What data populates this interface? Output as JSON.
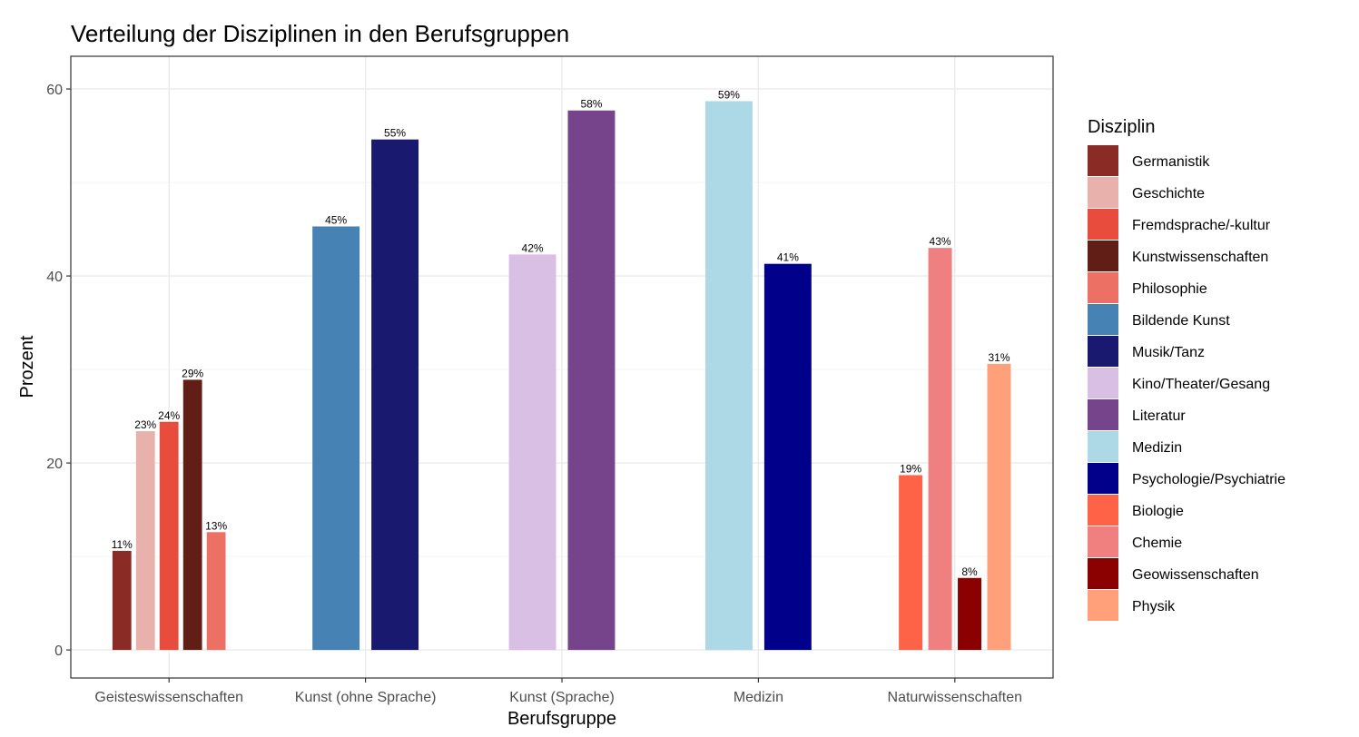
{
  "chart_data": {
    "type": "bar",
    "title": "Verteilung der Disziplinen in den Berufsgruppen",
    "xlabel": "Berufsgruppe",
    "ylabel": "Prozent",
    "ylim": [
      -3,
      63.5
    ],
    "yticks": [
      0,
      20,
      40,
      60
    ],
    "grid": true,
    "legend_title": "Disziplin",
    "legend_position": "right",
    "categories": [
      "Geisteswissenschaften",
      "Kunst (ohne Sprache)",
      "Kunst (Sprache)",
      "Medizin",
      "Naturwissenschaften"
    ],
    "disciplines": [
      {
        "name": "Germanistik",
        "color": "#8B2B26"
      },
      {
        "name": "Geschichte",
        "color": "#E8B1AB"
      },
      {
        "name": "Fremdsprache/-kultur",
        "color": "#E84C3D"
      },
      {
        "name": "Kunstwissenschaften",
        "color": "#611E17"
      },
      {
        "name": "Philosophie",
        "color": "#EC7063"
      },
      {
        "name": "Bildende Kunst",
        "color": "#4682B4"
      },
      {
        "name": "Musik/Tanz",
        "color": "#191970"
      },
      {
        "name": "Kino/Theater/Gesang",
        "color": "#D8BFE3"
      },
      {
        "name": "Literatur",
        "color": "#76448A"
      },
      {
        "name": "Medizin",
        "color": "#ADD8E6"
      },
      {
        "name": "Psychologie/Psychiatrie",
        "color": "#00008B"
      },
      {
        "name": "Biologie",
        "color": "#FF6347"
      },
      {
        "name": "Chemie",
        "color": "#F08080"
      },
      {
        "name": "Geowissenschaften",
        "color": "#8B0000"
      },
      {
        "name": "Physik",
        "color": "#FFA07A"
      }
    ],
    "groups": [
      {
        "category": "Geisteswissenschaften",
        "bars": [
          {
            "discipline": "Germanistik",
            "value": 10.6,
            "label": "11%"
          },
          {
            "discipline": "Geschichte",
            "value": 23.4,
            "label": "23%"
          },
          {
            "discipline": "Fremdsprache/-kultur",
            "value": 24.4,
            "label": "24%"
          },
          {
            "discipline": "Kunstwissenschaften",
            "value": 28.9,
            "label": "29%"
          },
          {
            "discipline": "Philosophie",
            "value": 12.6,
            "label": "13%"
          }
        ]
      },
      {
        "category": "Kunst (ohne Sprache)",
        "bars": [
          {
            "discipline": "Bildende Kunst",
            "value": 45.3,
            "label": "45%"
          },
          {
            "discipline": "Musik/Tanz",
            "value": 54.6,
            "label": "55%"
          }
        ]
      },
      {
        "category": "Kunst (Sprache)",
        "bars": [
          {
            "discipline": "Kino/Theater/Gesang",
            "value": 42.3,
            "label": "42%"
          },
          {
            "discipline": "Literatur",
            "value": 57.7,
            "label": "58%"
          }
        ]
      },
      {
        "category": "Medizin",
        "bars": [
          {
            "discipline": "Medizin",
            "value": 58.7,
            "label": "59%"
          },
          {
            "discipline": "Psychologie/Psychiatrie",
            "value": 41.3,
            "label": "41%"
          }
        ]
      },
      {
        "category": "Naturwissenschaften",
        "bars": [
          {
            "discipline": "Biologie",
            "value": 18.7,
            "label": "19%"
          },
          {
            "discipline": "Chemie",
            "value": 43.0,
            "label": "43%"
          },
          {
            "discipline": "Geowissenschaften",
            "value": 7.7,
            "label": "8%"
          },
          {
            "discipline": "Physik",
            "value": 30.6,
            "label": "31%"
          }
        ]
      }
    ]
  }
}
